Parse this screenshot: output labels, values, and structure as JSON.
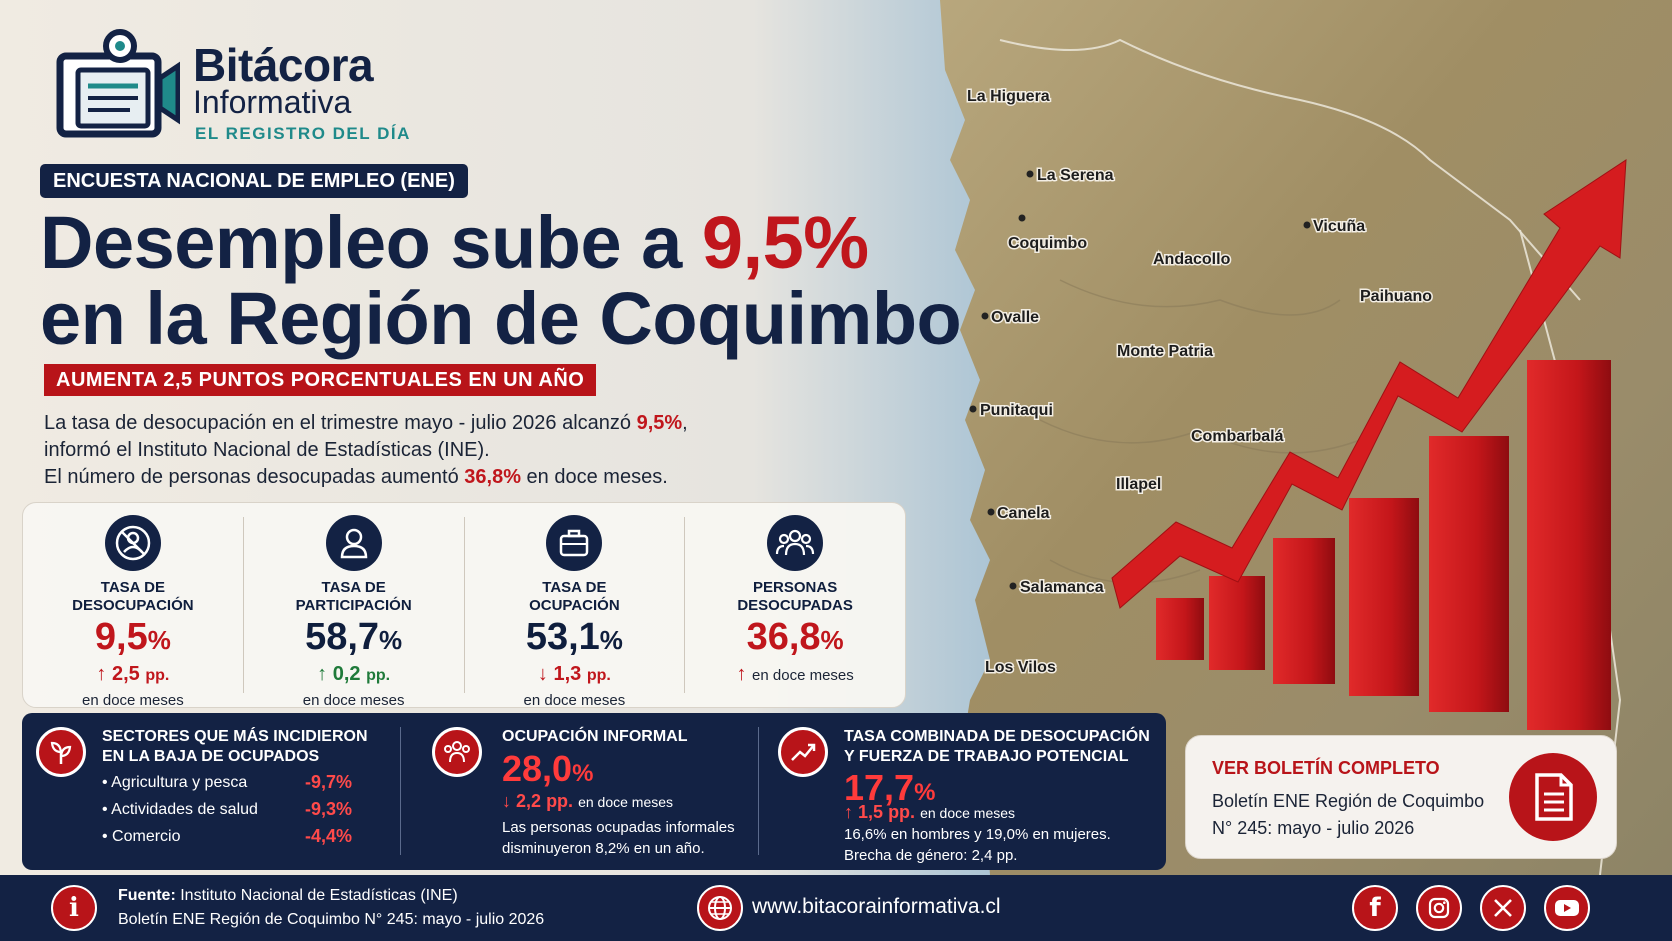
{
  "brand": {
    "name_line1": "Bitácora",
    "name_line2": "Informativa",
    "tagline": "EL REGISTRO DEL DÍA"
  },
  "kicker": "ENCUESTA NACIONAL DE EMPLEO (ENE)",
  "headline": {
    "part1": "Desempleo sube a ",
    "highlight": "9,5%",
    "line2": "en la Región de Coquimbo"
  },
  "subheadline": "AUMENTA 2,5 PUNTOS PORCENTUALES EN UN AÑO",
  "lead": {
    "l1_pre": "La tasa de desocupación en el trimestre mayo - julio 2026 alcanzó ",
    "l1_hl": "9,5%",
    "l1_post": ",",
    "l2": "informó el Instituto Nacional de Estadísticas (INE).",
    "l3_pre": "El número de personas desocupadas aumentó ",
    "l3_hl": "36,8%",
    "l3_post": " en doce meses."
  },
  "metrics": [
    {
      "label": "TASA DE\nDESOCUPACIÓN",
      "value": "9,5",
      "unit": "%",
      "arrow": "↑",
      "change": "2,5",
      "change_unit": "pp.",
      "note": "en doce meses",
      "icon": "people-crossed-icon"
    },
    {
      "label": "TASA DE\nPARTICIPACIÓN",
      "value": "58,7",
      "unit": "%",
      "arrow": "↑",
      "change": "0,2",
      "change_unit": "pp.",
      "note": "en doce meses",
      "icon": "person-icon"
    },
    {
      "label": "TASA DE\nOCUPACIÓN",
      "value": "53,1",
      "unit": "%",
      "arrow": "↓",
      "change": "1,3",
      "change_unit": "pp.",
      "note": "en doce meses",
      "icon": "briefcase-icon"
    },
    {
      "label": "PERSONAS\nDESOCUPADAS",
      "value": "36,8",
      "unit": "%",
      "arrow": "↑",
      "note": "en doce meses",
      "icon": "group-icon"
    }
  ],
  "sectors": {
    "title": "SECTORES QUE MÁS INCIDIERON\nEN LA BAJA DE OCUPADOS",
    "items": [
      {
        "name": "Agricultura y pesca",
        "value": "-9,7%"
      },
      {
        "name": "Actividades de salud",
        "value": "-9,3%"
      },
      {
        "name": "Comercio",
        "value": "-4,4%"
      }
    ]
  },
  "informal": {
    "title": "OCUPACIÓN INFORMAL",
    "value": "28,0",
    "unit": "%",
    "arrow": "↓",
    "change": "2,2",
    "change_unit": "pp.",
    "note": "en doce meses",
    "desc1": "Las personas ocupadas informales",
    "desc2": "disminuyeron 8,2% en un año."
  },
  "combined": {
    "title": "TASA COMBINADA DE DESOCUPACIÓN\nY FUERZA DE TRABAJO POTENCIAL",
    "value": "17,7",
    "unit": "%",
    "arrow": "↑",
    "change": "1,5",
    "change_unit": "pp.",
    "note": "en doce meses",
    "desc1": "16,6% en hombres y 19,0% en mujeres.",
    "desc2": "Brecha de género: 2,4 pp."
  },
  "bulletin": {
    "title": "VER BOLETÍN COMPLETO",
    "line1": "Boletín ENE Región de Coquimbo",
    "line2": "N° 245: mayo - julio 2026"
  },
  "map_labels": [
    "La Higuera",
    "La Serena",
    "Coquimbo",
    "Vicuña",
    "Andacollo",
    "Paihuano",
    "Ovalle",
    "Monte Patria",
    "Punitaqui",
    "Combarbalá",
    "Illapel",
    "Canela",
    "Salamanca",
    "Los Vilos"
  ],
  "footer": {
    "source_label": "Fuente:",
    "source": " Instituto Nacional de Estadísticas (INE)",
    "source_line2": "Boletín ENE Región de Coquimbo N° 245: mayo - julio 2026",
    "url": "www.bitacorainformativa.cl",
    "social": [
      "facebook-icon",
      "instagram-icon",
      "x-icon",
      "youtube-icon"
    ]
  },
  "colors": {
    "navy": "#132244",
    "red": "#c0161c",
    "teal": "#1f8a8a"
  }
}
